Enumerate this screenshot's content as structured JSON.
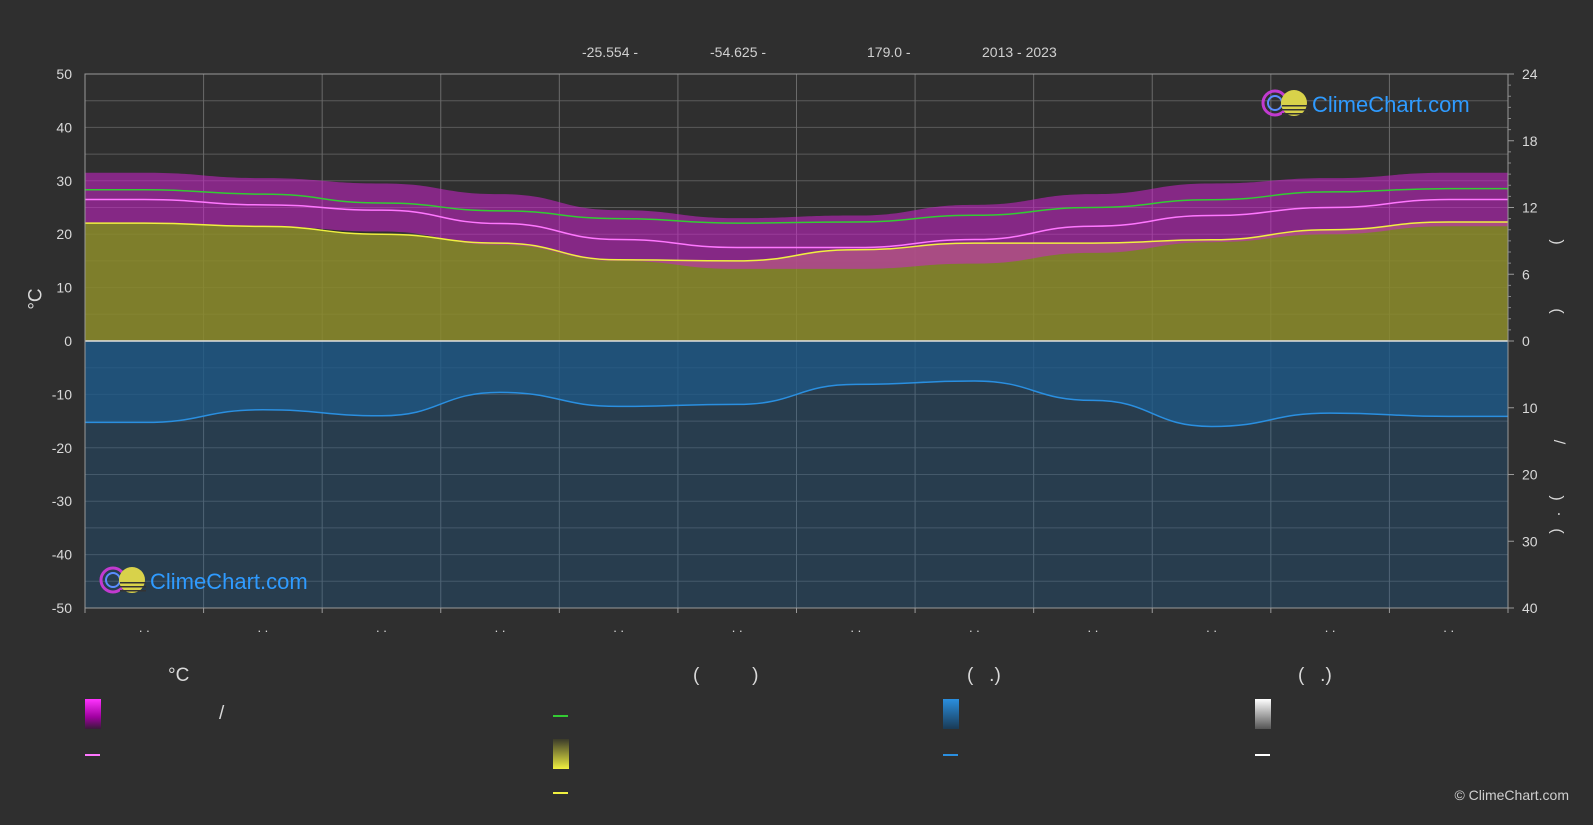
{
  "header": {
    "lat": "-25.554 -",
    "lon": "-54.625 -",
    "elev": "179.0 -",
    "years": "2013 - 2023"
  },
  "y_left_label": "°C",
  "right_axis_marks": {
    "top_paren_open": ")",
    "top_paren_close": "(",
    "slash": "/",
    "bottom_open": ")",
    "bottom_dot": "·",
    "bottom_close": "("
  },
  "legend": {
    "temp_title": "°C",
    "temp_slash": "/",
    "sun_title": "(          )",
    "rain_title": "(   .)",
    "snow_title": "(   .)"
  },
  "watermark": "ClimeChart.com",
  "copyright": "© ClimeChart.com",
  "colors": {
    "background": "#2f2f2f",
    "grid": "#5a5a5a",
    "temp_band": "#cc22cc",
    "temp_mean_line": "#ff77ff",
    "daylight_line": "#33cc33",
    "sunshine_fill": "#8c8c2a",
    "sunshine_line": "#f0f040",
    "rain_fill": "#1c5a8a",
    "rain_line": "#2a8fe0",
    "snow_line": "#ffffff"
  },
  "chart_data": {
    "type": "area",
    "x_tick_labels": [
      ". .",
      ". .",
      ". .",
      ". .",
      ". .",
      ". .",
      ". .",
      ". .",
      ". .",
      ". .",
      ". .",
      ". ."
    ],
    "y_left": {
      "label": "°C",
      "range": [
        -50,
        50
      ],
      "ticks": [
        50,
        40,
        30,
        20,
        10,
        0,
        -10,
        -20,
        -30,
        -40,
        -50
      ]
    },
    "y_right_top": {
      "range": [
        0,
        24
      ],
      "ticks": [
        24,
        18,
        12,
        6,
        0
      ]
    },
    "y_right_bottom": {
      "range": [
        0,
        40
      ],
      "ticks": [
        0,
        10,
        20,
        30,
        40
      ]
    },
    "grid": true,
    "months": 12,
    "series": [
      {
        "key": "daylight",
        "axis": "right_top",
        "values": [
          13.6,
          13.2,
          12.4,
          11.7,
          11.0,
          10.6,
          10.7,
          11.3,
          12.0,
          12.7,
          13.4,
          13.7
        ]
      },
      {
        "key": "temp_mean",
        "axis": "left",
        "values": [
          26.5,
          25.5,
          24.5,
          22.0,
          19.0,
          17.5,
          17.5,
          19.0,
          21.5,
          23.5,
          25.0,
          26.5
        ]
      },
      {
        "key": "temp_max",
        "axis": "left",
        "values": [
          31.5,
          30.5,
          29.5,
          27.5,
          24.5,
          23.0,
          23.5,
          25.5,
          27.5,
          29.5,
          30.5,
          31.5
        ]
      },
      {
        "key": "temp_min",
        "axis": "left",
        "values": [
          22.0,
          21.5,
          20.5,
          18.0,
          15.0,
          13.5,
          13.5,
          14.5,
          16.5,
          18.5,
          20.0,
          21.5
        ]
      },
      {
        "key": "sunshine",
        "axis": "right_top",
        "values": [
          10.6,
          10.3,
          9.6,
          8.8,
          7.3,
          7.2,
          8.2,
          8.8,
          8.8,
          9.1,
          10.0,
          10.7
        ]
      },
      {
        "key": "rain",
        "axis": "right_bottom",
        "values": [
          12.2,
          10.3,
          11.2,
          7.7,
          9.8,
          9.5,
          6.5,
          6.0,
          8.9,
          12.8,
          10.8,
          11.3
        ]
      }
    ]
  }
}
